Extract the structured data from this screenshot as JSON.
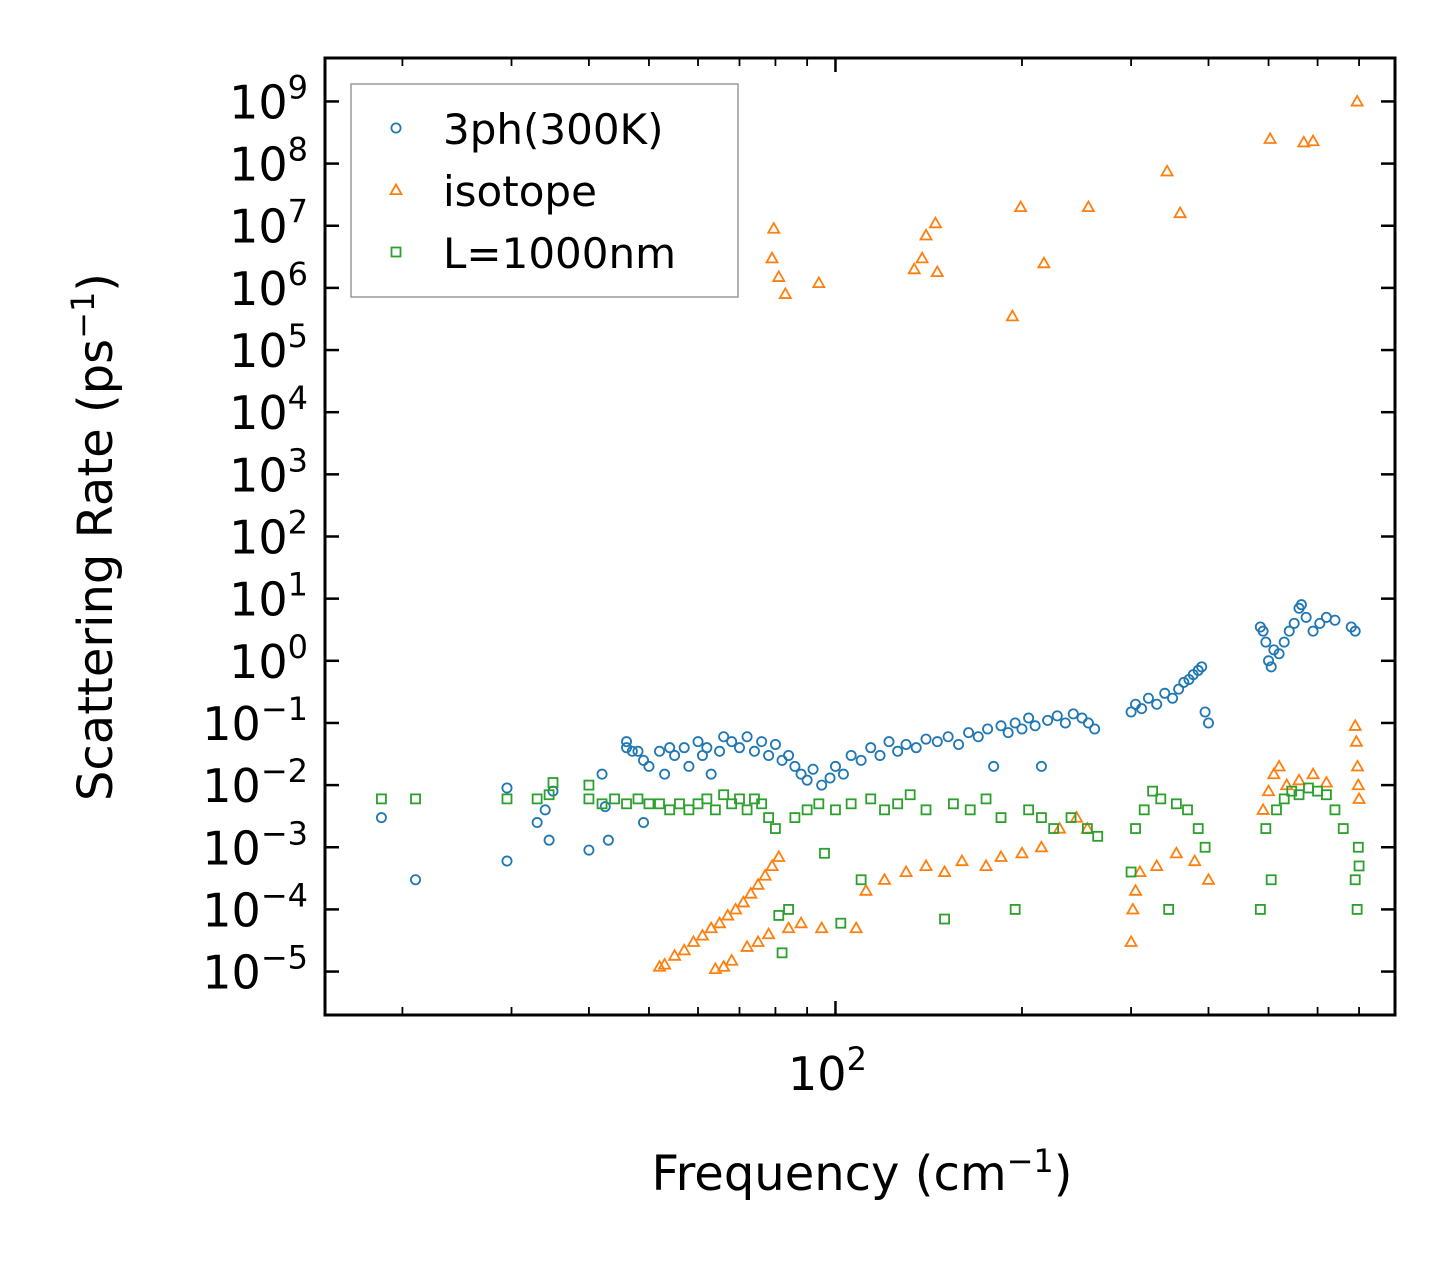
{
  "chart_data": {
    "type": "scatter",
    "xscale": "log",
    "yscale": "log",
    "xlim": [
      15,
      800
    ],
    "ylim": [
      2e-06,
      5000000000
    ],
    "xlabel_main": "Frequency (cm",
    "xlabel_sup": "−1",
    "xlabel_end": ")",
    "ylabel_main": "Scattering Rate (ps",
    "ylabel_sup": "−1",
    "ylabel_end": ")",
    "xticks": [
      {
        "base": "10",
        "exp": "2",
        "value": 100
      }
    ],
    "yticks": [
      {
        "base": "10",
        "exp": "9",
        "value": 1000000000.0
      },
      {
        "base": "10",
        "exp": "8",
        "value": 100000000.0
      },
      {
        "base": "10",
        "exp": "7",
        "value": 10000000.0
      },
      {
        "base": "10",
        "exp": "6",
        "value": 1000000.0
      },
      {
        "base": "10",
        "exp": "5",
        "value": 100000.0
      },
      {
        "base": "10",
        "exp": "4",
        "value": 10000.0
      },
      {
        "base": "10",
        "exp": "3",
        "value": 1000.0
      },
      {
        "base": "10",
        "exp": "2",
        "value": 100.0
      },
      {
        "base": "10",
        "exp": "1",
        "value": 10.0
      },
      {
        "base": "10",
        "exp": "0",
        "value": 1
      },
      {
        "base": "10",
        "exp": "−1",
        "value": 0.1
      },
      {
        "base": "10",
        "exp": "−2",
        "value": 0.01
      },
      {
        "base": "10",
        "exp": "−3",
        "value": 0.001
      },
      {
        "base": "10",
        "exp": "−4",
        "value": 0.0001
      },
      {
        "base": "10",
        "exp": "−5",
        "value": 1e-05
      }
    ],
    "legend_position": "top-left",
    "series": [
      {
        "name": "3ph(300K)",
        "marker": "circle",
        "color": "#1f77b4",
        "points": [
          [
            18.5,
            0.003
          ],
          [
            21,
            0.0003
          ],
          [
            29.5,
            0.009
          ],
          [
            29.5,
            0.0006
          ],
          [
            33,
            0.0025
          ],
          [
            34,
            0.004
          ],
          [
            34.5,
            0.0013
          ],
          [
            35,
            0.008
          ],
          [
            40,
            0.0009
          ],
          [
            42,
            0.015
          ],
          [
            42.5,
            0.0045
          ],
          [
            43,
            0.0013
          ],
          [
            46,
            0.05
          ],
          [
            46,
            0.04
          ],
          [
            47,
            0.035
          ],
          [
            48,
            0.035
          ],
          [
            49,
            0.025
          ],
          [
            49,
            0.0025
          ],
          [
            50,
            0.02
          ],
          [
            52,
            0.035
          ],
          [
            53,
            0.015
          ],
          [
            54,
            0.04
          ],
          [
            55,
            0.03
          ],
          [
            57,
            0.04
          ],
          [
            58,
            0.02
          ],
          [
            60,
            0.05
          ],
          [
            61,
            0.03
          ],
          [
            62,
            0.04
          ],
          [
            63,
            0.015
          ],
          [
            65,
            0.035
          ],
          [
            66,
            0.06
          ],
          [
            68,
            0.05
          ],
          [
            70,
            0.04
          ],
          [
            72,
            0.06
          ],
          [
            74,
            0.035
          ],
          [
            76,
            0.05
          ],
          [
            78,
            0.03
          ],
          [
            80,
            0.045
          ],
          [
            82,
            0.025
          ],
          [
            84,
            0.03
          ],
          [
            86,
            0.02
          ],
          [
            88,
            0.015
          ],
          [
            90,
            0.012
          ],
          [
            92,
            0.018
          ],
          [
            95,
            0.01
          ],
          [
            98,
            0.013
          ],
          [
            100,
            0.02
          ],
          [
            103,
            0.015
          ],
          [
            106,
            0.03
          ],
          [
            110,
            0.025
          ],
          [
            114,
            0.04
          ],
          [
            118,
            0.03
          ],
          [
            122,
            0.05
          ],
          [
            126,
            0.035
          ],
          [
            130,
            0.045
          ],
          [
            135,
            0.04
          ],
          [
            140,
            0.055
          ],
          [
            146,
            0.05
          ],
          [
            152,
            0.06
          ],
          [
            158,
            0.045
          ],
          [
            164,
            0.07
          ],
          [
            170,
            0.06
          ],
          [
            176,
            0.08
          ],
          [
            180,
            0.02
          ],
          [
            185,
            0.09
          ],
          [
            190,
            0.07
          ],
          [
            195,
            0.1
          ],
          [
            200,
            0.08
          ],
          [
            205,
            0.12
          ],
          [
            210,
            0.09
          ],
          [
            215,
            0.02
          ],
          [
            220,
            0.11
          ],
          [
            228,
            0.13
          ],
          [
            235,
            0.1
          ],
          [
            242,
            0.14
          ],
          [
            250,
            0.12
          ],
          [
            256,
            0.1
          ],
          [
            262,
            0.08
          ],
          [
            300,
            0.15
          ],
          [
            305,
            0.2
          ],
          [
            312,
            0.17
          ],
          [
            320,
            0.25
          ],
          [
            330,
            0.2
          ],
          [
            340,
            0.3
          ],
          [
            350,
            0.25
          ],
          [
            358,
            0.35
          ],
          [
            365,
            0.45
          ],
          [
            372,
            0.5
          ],
          [
            378,
            0.6
          ],
          [
            385,
            0.7
          ],
          [
            390,
            0.8
          ],
          [
            395,
            0.15
          ],
          [
            400,
            0.1
          ],
          [
            485,
            3.5
          ],
          [
            490,
            3.0
          ],
          [
            495,
            2.0
          ],
          [
            500,
            1.0
          ],
          [
            505,
            0.8
          ],
          [
            510,
            1.5
          ],
          [
            520,
            1.3
          ],
          [
            530,
            2.0
          ],
          [
            540,
            3.0
          ],
          [
            550,
            4.0
          ],
          [
            560,
            7.0
          ],
          [
            565,
            8.0
          ],
          [
            575,
            5.0
          ],
          [
            590,
            3.0
          ],
          [
            605,
            4.0
          ],
          [
            620,
            5.0
          ],
          [
            640,
            4.5
          ],
          [
            680,
            3.5
          ],
          [
            690,
            3.0
          ]
        ]
      },
      {
        "name": "isotope",
        "marker": "triangle",
        "color": "#ff7f0e",
        "points": [
          [
            79,
            3000000
          ],
          [
            79.5,
            9000000
          ],
          [
            81,
            1500000
          ],
          [
            83,
            800000
          ],
          [
            94,
            1200000
          ],
          [
            134,
            2000000
          ],
          [
            138,
            3000000
          ],
          [
            140,
            7000000
          ],
          [
            145,
            11000000
          ],
          [
            146,
            1800000
          ],
          [
            193,
            350000
          ],
          [
            199,
            20000000
          ],
          [
            217,
            2500000
          ],
          [
            256,
            20000000
          ],
          [
            343,
            75000000
          ],
          [
            360,
            16000000
          ],
          [
            503,
            250000000
          ],
          [
            570,
            220000000
          ],
          [
            590,
            230000000
          ],
          [
            695,
            1000000000
          ],
          [
            52,
            1.2e-05
          ],
          [
            53,
            1.3e-05
          ],
          [
            55,
            1.8e-05
          ],
          [
            57,
            2.2e-05
          ],
          [
            59,
            3e-05
          ],
          [
            61,
            3.8e-05
          ],
          [
            63,
            5e-05
          ],
          [
            65,
            6e-05
          ],
          [
            67,
            8e-05
          ],
          [
            69,
            0.0001
          ],
          [
            71,
            0.00013
          ],
          [
            73,
            0.00018
          ],
          [
            75,
            0.00025
          ],
          [
            77,
            0.00035
          ],
          [
            79,
            0.0005
          ],
          [
            81,
            0.0007
          ],
          [
            64,
            1.1e-05
          ],
          [
            66,
            1.2e-05
          ],
          [
            68,
            1.5e-05
          ],
          [
            72,
            2.5e-05
          ],
          [
            75,
            3e-05
          ],
          [
            78,
            4e-05
          ],
          [
            84,
            5e-05
          ],
          [
            88,
            6e-05
          ],
          [
            95,
            5e-05
          ],
          [
            108,
            5e-05
          ],
          [
            112,
            0.0002
          ],
          [
            120,
            0.0003
          ],
          [
            130,
            0.0004
          ],
          [
            140,
            0.0005
          ],
          [
            150,
            0.0004
          ],
          [
            160,
            0.0006
          ],
          [
            175,
            0.0005
          ],
          [
            185,
            0.0007
          ],
          [
            200,
            0.0008
          ],
          [
            215,
            0.001
          ],
          [
            230,
            0.002
          ],
          [
            245,
            0.003
          ],
          [
            255,
            0.002
          ],
          [
            300,
            3e-05
          ],
          [
            302,
            0.0001
          ],
          [
            305,
            0.0002
          ],
          [
            310,
            0.0004
          ],
          [
            330,
            0.0005
          ],
          [
            355,
            0.0008
          ],
          [
            380,
            0.0006
          ],
          [
            400,
            0.0003
          ],
          [
            490,
            0.004
          ],
          [
            500,
            0.008
          ],
          [
            510,
            0.015
          ],
          [
            520,
            0.02
          ],
          [
            535,
            0.01
          ],
          [
            560,
            0.012
          ],
          [
            590,
            0.015
          ],
          [
            620,
            0.011
          ],
          [
            690,
            0.09
          ],
          [
            693,
            0.05
          ],
          [
            696,
            0.02
          ],
          [
            698,
            0.01
          ],
          [
            700,
            0.006
          ]
        ]
      },
      {
        "name": "L=1000nm",
        "marker": "square",
        "color": "#2ca02c",
        "points": [
          [
            18.5,
            0.006
          ],
          [
            21,
            0.006
          ],
          [
            29.5,
            0.006
          ],
          [
            33,
            0.006
          ],
          [
            34.5,
            0.007
          ],
          [
            35,
            0.011
          ],
          [
            40,
            0.006
          ],
          [
            40,
            0.01
          ],
          [
            42,
            0.005
          ],
          [
            44,
            0.006
          ],
          [
            46,
            0.005
          ],
          [
            48,
            0.006
          ],
          [
            50,
            0.005
          ],
          [
            52,
            0.005
          ],
          [
            54,
            0.004
          ],
          [
            56,
            0.005
          ],
          [
            58,
            0.004
          ],
          [
            60,
            0.005
          ],
          [
            62,
            0.006
          ],
          [
            64,
            0.004
          ],
          [
            66,
            0.007
          ],
          [
            68,
            0.005
          ],
          [
            70,
            0.006
          ],
          [
            72,
            0.004
          ],
          [
            74,
            0.006
          ],
          [
            76,
            0.005
          ],
          [
            78,
            0.003
          ],
          [
            80,
            0.002
          ],
          [
            81,
            8e-05
          ],
          [
            82,
            2e-05
          ],
          [
            84,
            0.0001
          ],
          [
            86,
            0.003
          ],
          [
            90,
            0.004
          ],
          [
            94,
            0.005
          ],
          [
            96,
            0.0008
          ],
          [
            100,
            0.004
          ],
          [
            102,
            6e-05
          ],
          [
            106,
            0.005
          ],
          [
            110,
            0.0003
          ],
          [
            114,
            0.006
          ],
          [
            120,
            0.004
          ],
          [
            126,
            0.005
          ],
          [
            132,
            0.007
          ],
          [
            140,
            0.004
          ],
          [
            150,
            7e-05
          ],
          [
            155,
            0.005
          ],
          [
            165,
            0.004
          ],
          [
            175,
            0.006
          ],
          [
            185,
            0.003
          ],
          [
            195,
            0.0001
          ],
          [
            205,
            0.004
          ],
          [
            215,
            0.003
          ],
          [
            225,
            0.002
          ],
          [
            240,
            0.003
          ],
          [
            255,
            0.002
          ],
          [
            265,
            0.0015
          ],
          [
            300,
            0.0004
          ],
          [
            305,
            0.002
          ],
          [
            315,
            0.004
          ],
          [
            325,
            0.008
          ],
          [
            335,
            0.006
          ],
          [
            345,
            0.0001
          ],
          [
            355,
            0.005
          ],
          [
            370,
            0.004
          ],
          [
            385,
            0.002
          ],
          [
            395,
            0.001
          ],
          [
            485,
            0.0001
          ],
          [
            495,
            0.002
          ],
          [
            505,
            0.0003
          ],
          [
            515,
            0.004
          ],
          [
            530,
            0.006
          ],
          [
            545,
            0.008
          ],
          [
            560,
            0.007
          ],
          [
            580,
            0.009
          ],
          [
            600,
            0.008
          ],
          [
            620,
            0.007
          ],
          [
            640,
            0.004
          ],
          [
            660,
            0.002
          ],
          [
            690,
            0.0003
          ],
          [
            695,
            0.0001
          ],
          [
            698,
            0.001
          ],
          [
            700,
            0.0005
          ]
        ]
      }
    ]
  }
}
